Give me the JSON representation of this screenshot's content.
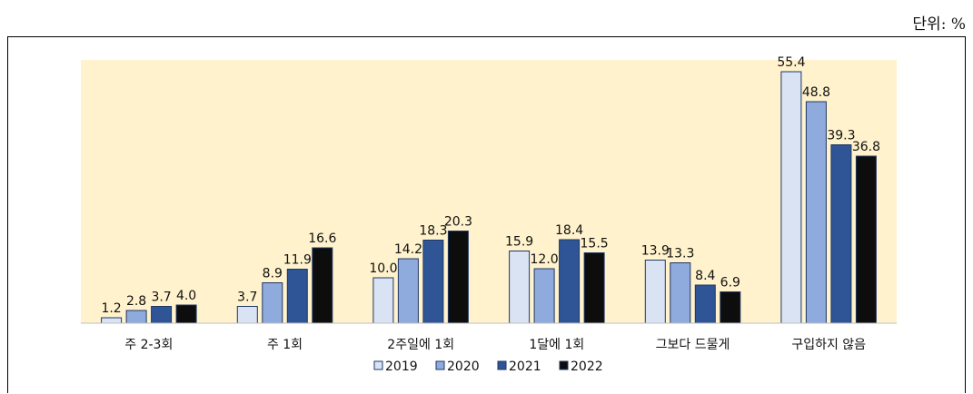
{
  "unit_label": "단위: %",
  "chart_data": {
    "type": "bar",
    "categories": [
      "주 2-3회",
      "주 1회",
      "2주일에 1회",
      "1달에 1회",
      "그보다 드물게",
      "구입하지 않음"
    ],
    "series": [
      {
        "name": "2019",
        "values": [
          1.2,
          3.7,
          10.0,
          15.9,
          13.9,
          55.4
        ],
        "color": "#dae3f3"
      },
      {
        "name": "2020",
        "values": [
          2.8,
          8.9,
          14.2,
          12.0,
          13.3,
          48.8
        ],
        "color": "#8faadc"
      },
      {
        "name": "2021",
        "values": [
          3.7,
          11.9,
          18.3,
          18.4,
          8.4,
          39.3
        ],
        "color": "#2f5597"
      },
      {
        "name": "2022",
        "values": [
          4.0,
          16.6,
          20.3,
          15.5,
          6.9,
          36.8
        ],
        "color": "#0d0d0d"
      }
    ],
    "value_labels": [
      [
        "1.2",
        "3.7",
        "10.0",
        "15.9",
        "13.9",
        "55.4"
      ],
      [
        "2.8",
        "8.9",
        "14.2",
        "12.0",
        "13.3",
        "48.8"
      ],
      [
        "3.7",
        "11.9",
        "18.3",
        "18.4",
        "8.4",
        "39.3"
      ],
      [
        "4.0",
        "16.6",
        "20.3",
        "15.5",
        "6.9",
        "36.8"
      ]
    ],
    "ylim": [
      0,
      58
    ],
    "grid": false,
    "legend": "bottom",
    "plot_background": "#fff2cc"
  }
}
